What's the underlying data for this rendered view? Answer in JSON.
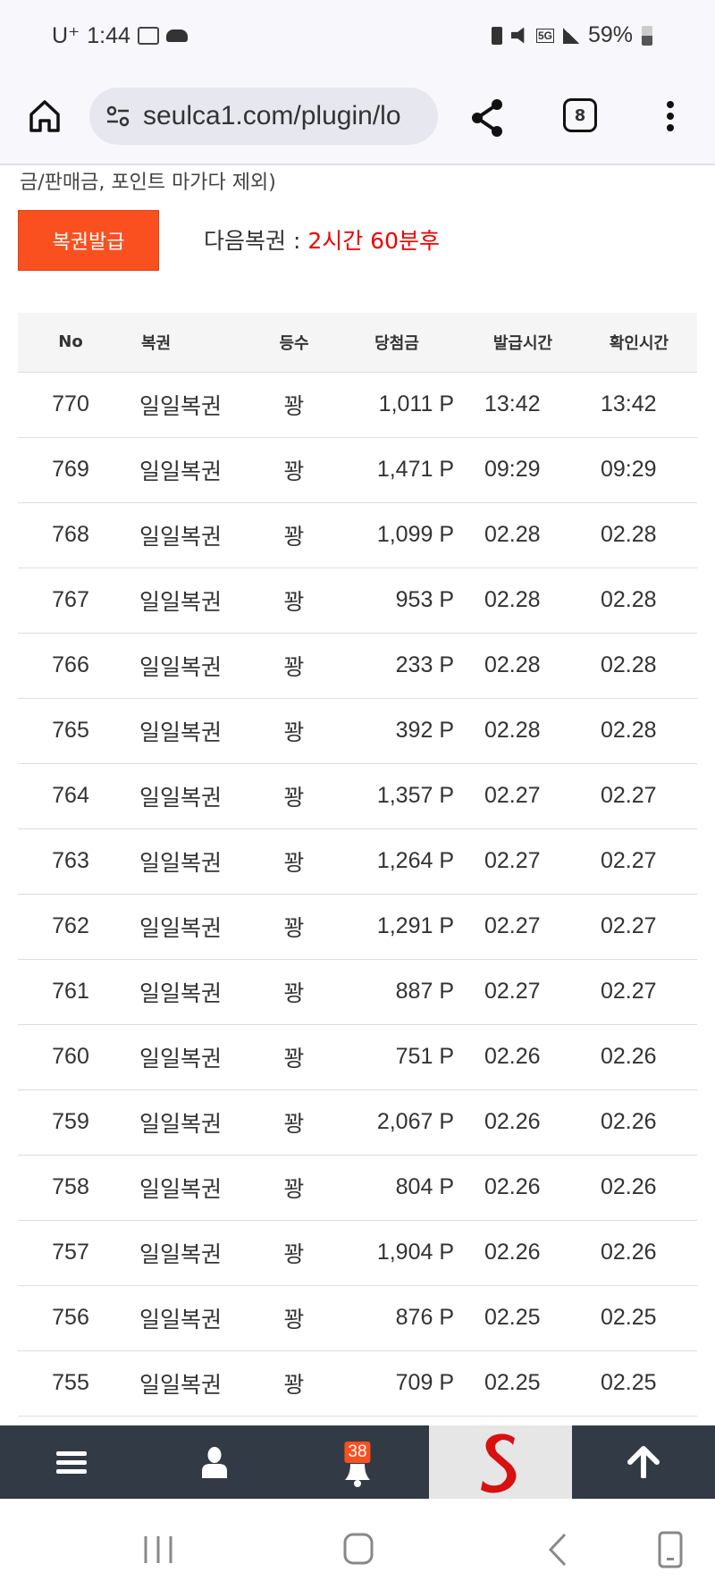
{
  "status_bar": {
    "carrier": "U⁺",
    "time": "1:44",
    "battery": "59%",
    "network": "5G"
  },
  "browser": {
    "url": "seulca1.com/plugin/lo",
    "tab_count": "8"
  },
  "page": {
    "partial_text": "금/판매금, 포인트 마가다 제외)",
    "issue_button": "복권발급",
    "next_label": "다음복권 :",
    "next_value": "2시간 60분후",
    "accent": "#fa5020"
  },
  "table": {
    "headers": [
      "No",
      "복권",
      "등수",
      "당첨금",
      "발급시간",
      "확인시간"
    ],
    "rows": [
      [
        "770",
        "일일복권",
        "꽝",
        "1,011 P",
        "13:42",
        "13:42"
      ],
      [
        "769",
        "일일복권",
        "꽝",
        "1,471 P",
        "09:29",
        "09:29"
      ],
      [
        "768",
        "일일복권",
        "꽝",
        "1,099 P",
        "02.28",
        "02.28"
      ],
      [
        "767",
        "일일복권",
        "꽝",
        "953 P",
        "02.28",
        "02.28"
      ],
      [
        "766",
        "일일복권",
        "꽝",
        "233 P",
        "02.28",
        "02.28"
      ],
      [
        "765",
        "일일복권",
        "꽝",
        "392 P",
        "02.28",
        "02.28"
      ],
      [
        "764",
        "일일복권",
        "꽝",
        "1,357 P",
        "02.27",
        "02.27"
      ],
      [
        "763",
        "일일복권",
        "꽝",
        "1,264 P",
        "02.27",
        "02.27"
      ],
      [
        "762",
        "일일복권",
        "꽝",
        "1,291 P",
        "02.27",
        "02.27"
      ],
      [
        "761",
        "일일복권",
        "꽝",
        "887 P",
        "02.27",
        "02.27"
      ],
      [
        "760",
        "일일복권",
        "꽝",
        "751 P",
        "02.26",
        "02.26"
      ],
      [
        "759",
        "일일복권",
        "꽝",
        "2,067 P",
        "02.26",
        "02.26"
      ],
      [
        "758",
        "일일복권",
        "꽝",
        "804 P",
        "02.26",
        "02.26"
      ],
      [
        "757",
        "일일복권",
        "꽝",
        "1,904 P",
        "02.26",
        "02.26"
      ],
      [
        "756",
        "일일복권",
        "꽝",
        "876 P",
        "02.25",
        "02.25"
      ],
      [
        "755",
        "일일복권",
        "꽝",
        "709 P",
        "02.25",
        "02.25"
      ]
    ]
  },
  "bottom_nav": {
    "notification_count": "38"
  }
}
